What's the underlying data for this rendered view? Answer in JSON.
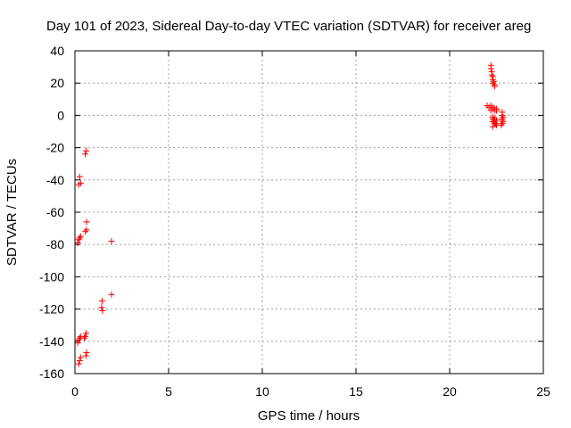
{
  "chart_data": {
    "type": "scatter",
    "title": "Day 101 of 2023, Sidereal Day-to-day VTEC variation (SDTVAR) for receiver areg",
    "xlabel": "GPS time / hours",
    "ylabel": "SDTVAR / TECUs",
    "xlim": [
      0,
      25
    ],
    "ylim": [
      -160,
      40
    ],
    "xticks": [
      0,
      5,
      10,
      15,
      20,
      25
    ],
    "yticks": [
      -160,
      -140,
      -120,
      -100,
      -80,
      -60,
      -40,
      -20,
      0,
      20,
      40
    ],
    "xtick_labels": [
      "0",
      "5",
      "10",
      "15",
      "20",
      "25"
    ],
    "ytick_labels": [
      "-160",
      "-140",
      "-120",
      "-100",
      "-80",
      "-60",
      "-40",
      "-20",
      "0",
      "20",
      "40"
    ],
    "grid": true,
    "marker": "+",
    "marker_color": "#ff0000",
    "series": [
      {
        "name": "SDTVAR",
        "x": [
          0.6,
          0.55,
          0.62,
          0.25,
          0.3,
          0.2,
          0.15,
          0.62,
          0.55,
          0.3,
          0.25,
          0.2,
          0.15,
          1.95,
          1.95,
          1.45,
          1.42,
          1.47,
          0.6,
          0.55,
          0.5,
          0.3,
          0.25,
          0.2,
          0.15,
          0.62,
          0.58,
          0.3,
          0.25,
          0.2,
          22.2,
          22.2,
          22.25,
          22.25,
          22.3,
          22.3,
          22.3,
          22.35,
          22.4,
          22.4,
          22.0,
          22.1,
          22.2,
          22.3,
          22.4,
          22.5,
          22.2,
          22.3,
          22.4,
          22.5,
          22.8,
          22.8,
          22.85,
          22.8,
          22.8,
          22.85,
          22.8,
          22.75,
          22.3,
          22.4,
          22.5,
          22.3,
          22.4,
          22.5,
          22.35,
          22.45,
          22.3,
          22.4,
          22.5,
          22.3
        ],
        "y": [
          -22,
          -24,
          -66,
          -38,
          -42,
          -43,
          -79,
          -71,
          -72,
          -75,
          -76,
          -77,
          -79,
          -78,
          -111,
          -115,
          -119,
          -121,
          -135,
          -137,
          -138,
          -137,
          -138,
          -139,
          -141,
          -147,
          -149,
          -150,
          -152,
          -154,
          31,
          29,
          27,
          25,
          24,
          22,
          20,
          21,
          19,
          18,
          6,
          5,
          6,
          5,
          4,
          4,
          3,
          4,
          3,
          3,
          2,
          0,
          -1,
          -2,
          -3,
          -4,
          -5,
          -6,
          -1,
          -2,
          -3,
          -4,
          -5,
          -6,
          -3,
          -5,
          -2,
          -4,
          -6,
          -7
        ]
      }
    ]
  }
}
